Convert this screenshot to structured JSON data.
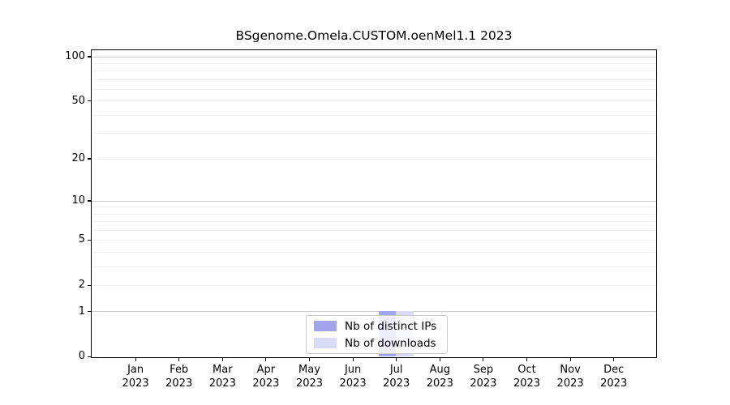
{
  "chart_data": {
    "type": "bar",
    "title": "BSgenome.Omela.CUSTOM.oenMel1.1 2023",
    "xlabel": "",
    "ylabel": "",
    "yscale": "log1p",
    "ylim": [
      0,
      110
    ],
    "yticks": [
      0,
      1,
      2,
      5,
      10,
      20,
      50,
      100
    ],
    "grid_major_values": [
      1,
      10,
      100
    ],
    "grid_minor_values": [
      2,
      3,
      4,
      5,
      6,
      7,
      8,
      9,
      20,
      30,
      40,
      50,
      60,
      70,
      80,
      90
    ],
    "categories": [
      {
        "month": "Jan",
        "year": "2023"
      },
      {
        "month": "Feb",
        "year": "2023"
      },
      {
        "month": "Mar",
        "year": "2023"
      },
      {
        "month": "Apr",
        "year": "2023"
      },
      {
        "month": "May",
        "year": "2023"
      },
      {
        "month": "Jun",
        "year": "2023"
      },
      {
        "month": "Jul",
        "year": "2023"
      },
      {
        "month": "Aug",
        "year": "2023"
      },
      {
        "month": "Sep",
        "year": "2023"
      },
      {
        "month": "Oct",
        "year": "2023"
      },
      {
        "month": "Nov",
        "year": "2023"
      },
      {
        "month": "Dec",
        "year": "2023"
      }
    ],
    "series": [
      {
        "name": "Nb of distinct IPs",
        "color": "#a3a5ea",
        "values": [
          0,
          0,
          0,
          0,
          0,
          0,
          1,
          0,
          0,
          0,
          0,
          0
        ]
      },
      {
        "name": "Nb of downloads",
        "color": "#d8daf8",
        "values": [
          0,
          0,
          0,
          0,
          0,
          0,
          1,
          0,
          0,
          0,
          0,
          0
        ]
      }
    ],
    "legend": {
      "position": "bottom-center"
    },
    "colors": {
      "grid_major": "#c8c8c8",
      "grid_minor": "#f0f0f0",
      "axis": "#000000",
      "legend_border": "#cccccc"
    }
  }
}
